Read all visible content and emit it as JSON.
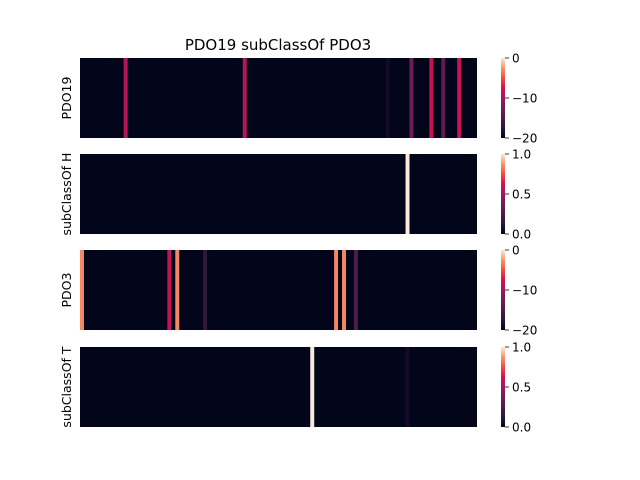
{
  "chart_data": {
    "type": "heatmap",
    "title": "PDO19 subClassOf PDO3",
    "colormap": "rocket",
    "n_columns": 100,
    "panels": [
      {
        "ylabel": "PDO19",
        "vmin": -20,
        "vmax": 0,
        "colorbar_ticks": [
          "0",
          "−10",
          "−20"
        ],
        "colorbar_tick_values": [
          0,
          -10,
          -20
        ],
        "background_value": -20,
        "stripes": [
          {
            "col": 11,
            "value": -9
          },
          {
            "col": 41,
            "value": -9
          },
          {
            "col": 77,
            "value": -19
          },
          {
            "col": 83,
            "value": -13
          },
          {
            "col": 88,
            "value": -8
          },
          {
            "col": 91,
            "value": -14
          },
          {
            "col": 95,
            "value": -8
          }
        ]
      },
      {
        "ylabel": "subClassOf H",
        "vmin": 0,
        "vmax": 1,
        "colorbar_ticks": [
          "1.0",
          "0.5",
          "0.0"
        ],
        "colorbar_tick_values": [
          1.0,
          0.5,
          0.0
        ],
        "background_value": 0,
        "stripes": [
          {
            "col": 82,
            "value": 1.0
          }
        ]
      },
      {
        "ylabel": "PDO3",
        "vmin": -20,
        "vmax": 0,
        "colorbar_ticks": [
          "0",
          "−10",
          "−20"
        ],
        "colorbar_tick_values": [
          0,
          -10,
          -20
        ],
        "background_value": -20,
        "stripes": [
          {
            "col": 0,
            "value": -3
          },
          {
            "col": 22,
            "value": -8
          },
          {
            "col": 24,
            "value": -3
          },
          {
            "col": 31,
            "value": -17
          },
          {
            "col": 64,
            "value": -3
          },
          {
            "col": 66,
            "value": -3
          },
          {
            "col": 69,
            "value": -15
          }
        ]
      },
      {
        "ylabel": "subClassOf T",
        "vmin": 0,
        "vmax": 1,
        "colorbar_ticks": [
          "1.0",
          "0.5",
          "0.0"
        ],
        "colorbar_tick_values": [
          1.0,
          0.5,
          0.0
        ],
        "background_value": 0,
        "stripes": [
          {
            "col": 58,
            "value": 1.0
          },
          {
            "col": 82,
            "value": 0.05
          }
        ]
      }
    ]
  }
}
